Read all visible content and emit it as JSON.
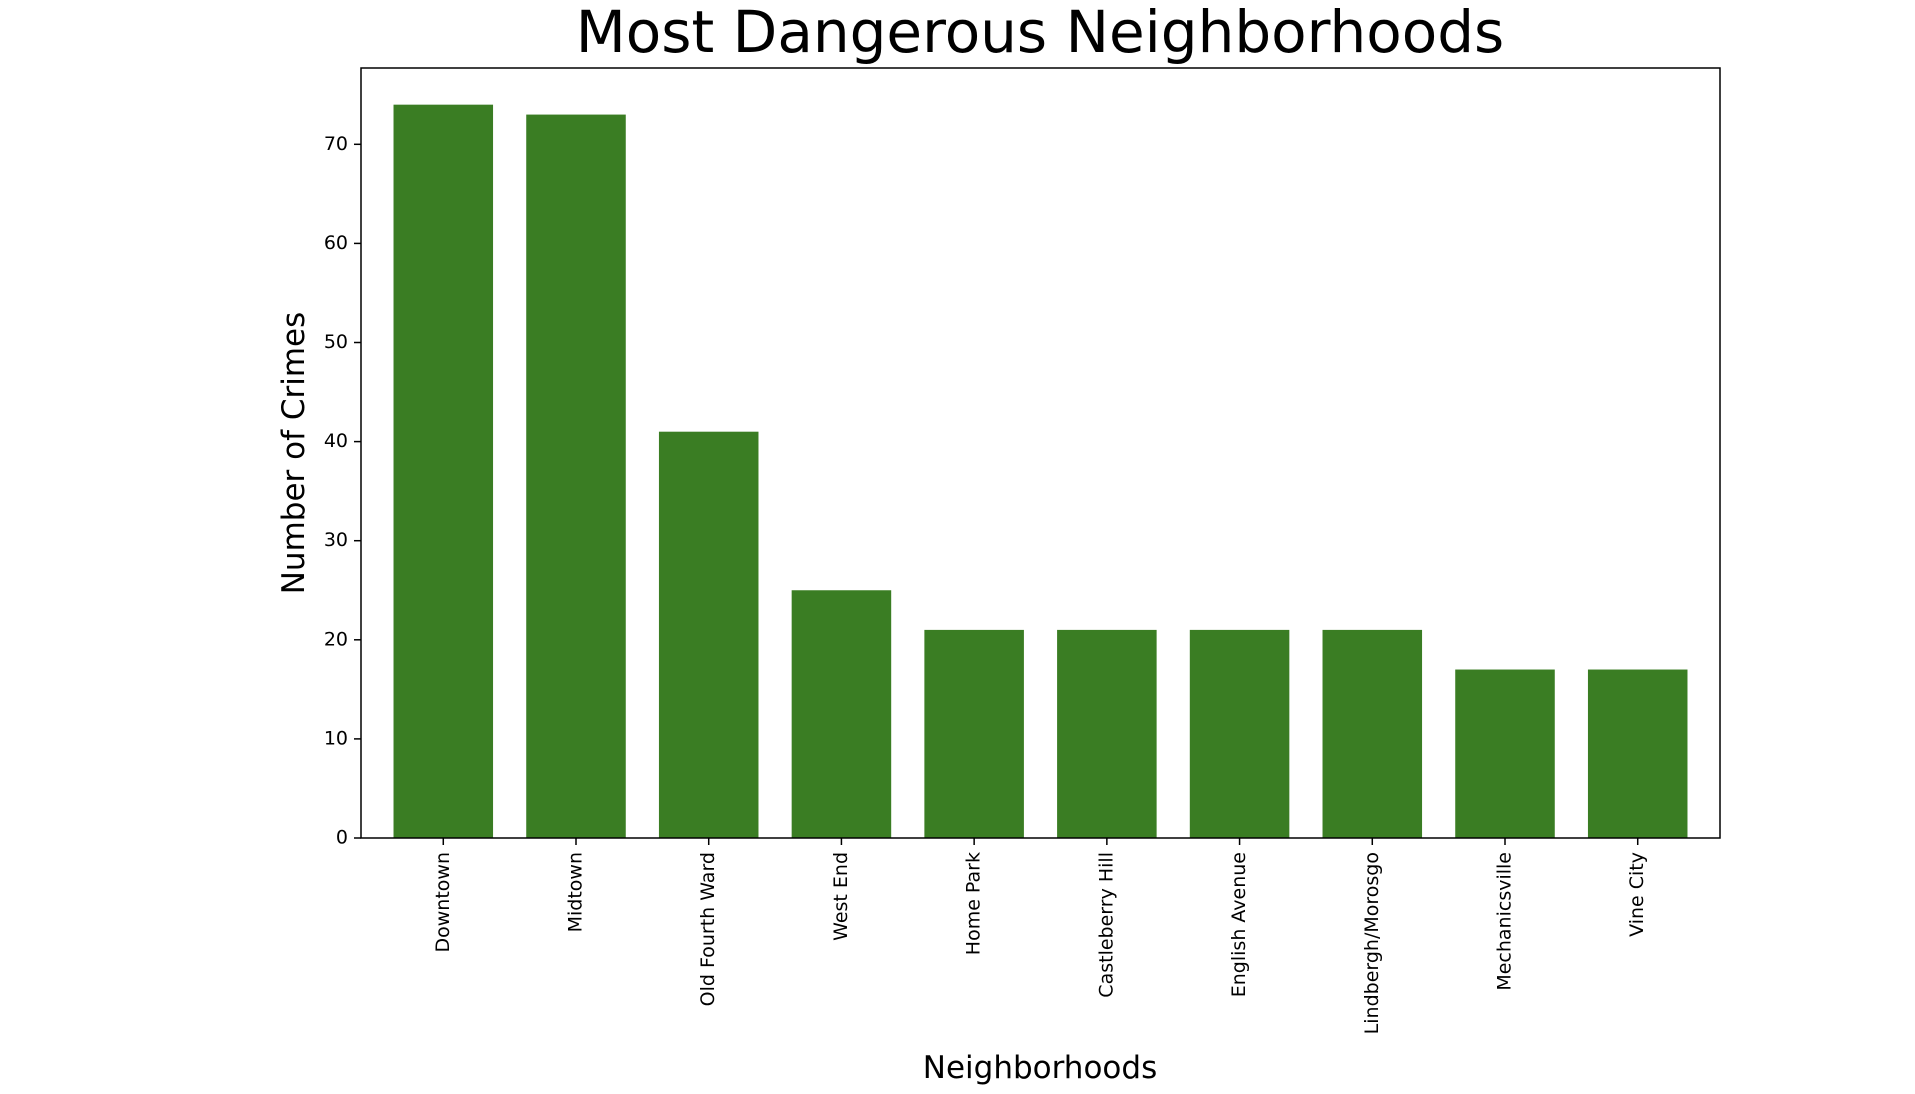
{
  "chart_data": {
    "type": "bar",
    "title": "Most Dangerous Neighborhoods",
    "xlabel": "Neighborhoods",
    "ylabel": "Number of Crimes",
    "categories": [
      "Downtown",
      "Midtown",
      "Old Fourth Ward",
      "West End",
      "Home Park",
      "Castleberry Hill",
      "English Avenue",
      "Lindbergh/Morosgo",
      "Mechanicsville",
      "Vine City"
    ],
    "values": [
      74,
      73,
      41,
      25,
      21,
      21,
      21,
      21,
      17,
      17
    ],
    "ylim": [
      0,
      77.7
    ],
    "yticks": [
      0,
      10,
      20,
      30,
      40,
      50,
      60,
      70
    ],
    "bar_color": "#3a7d23",
    "grid": false,
    "legend": "none"
  }
}
